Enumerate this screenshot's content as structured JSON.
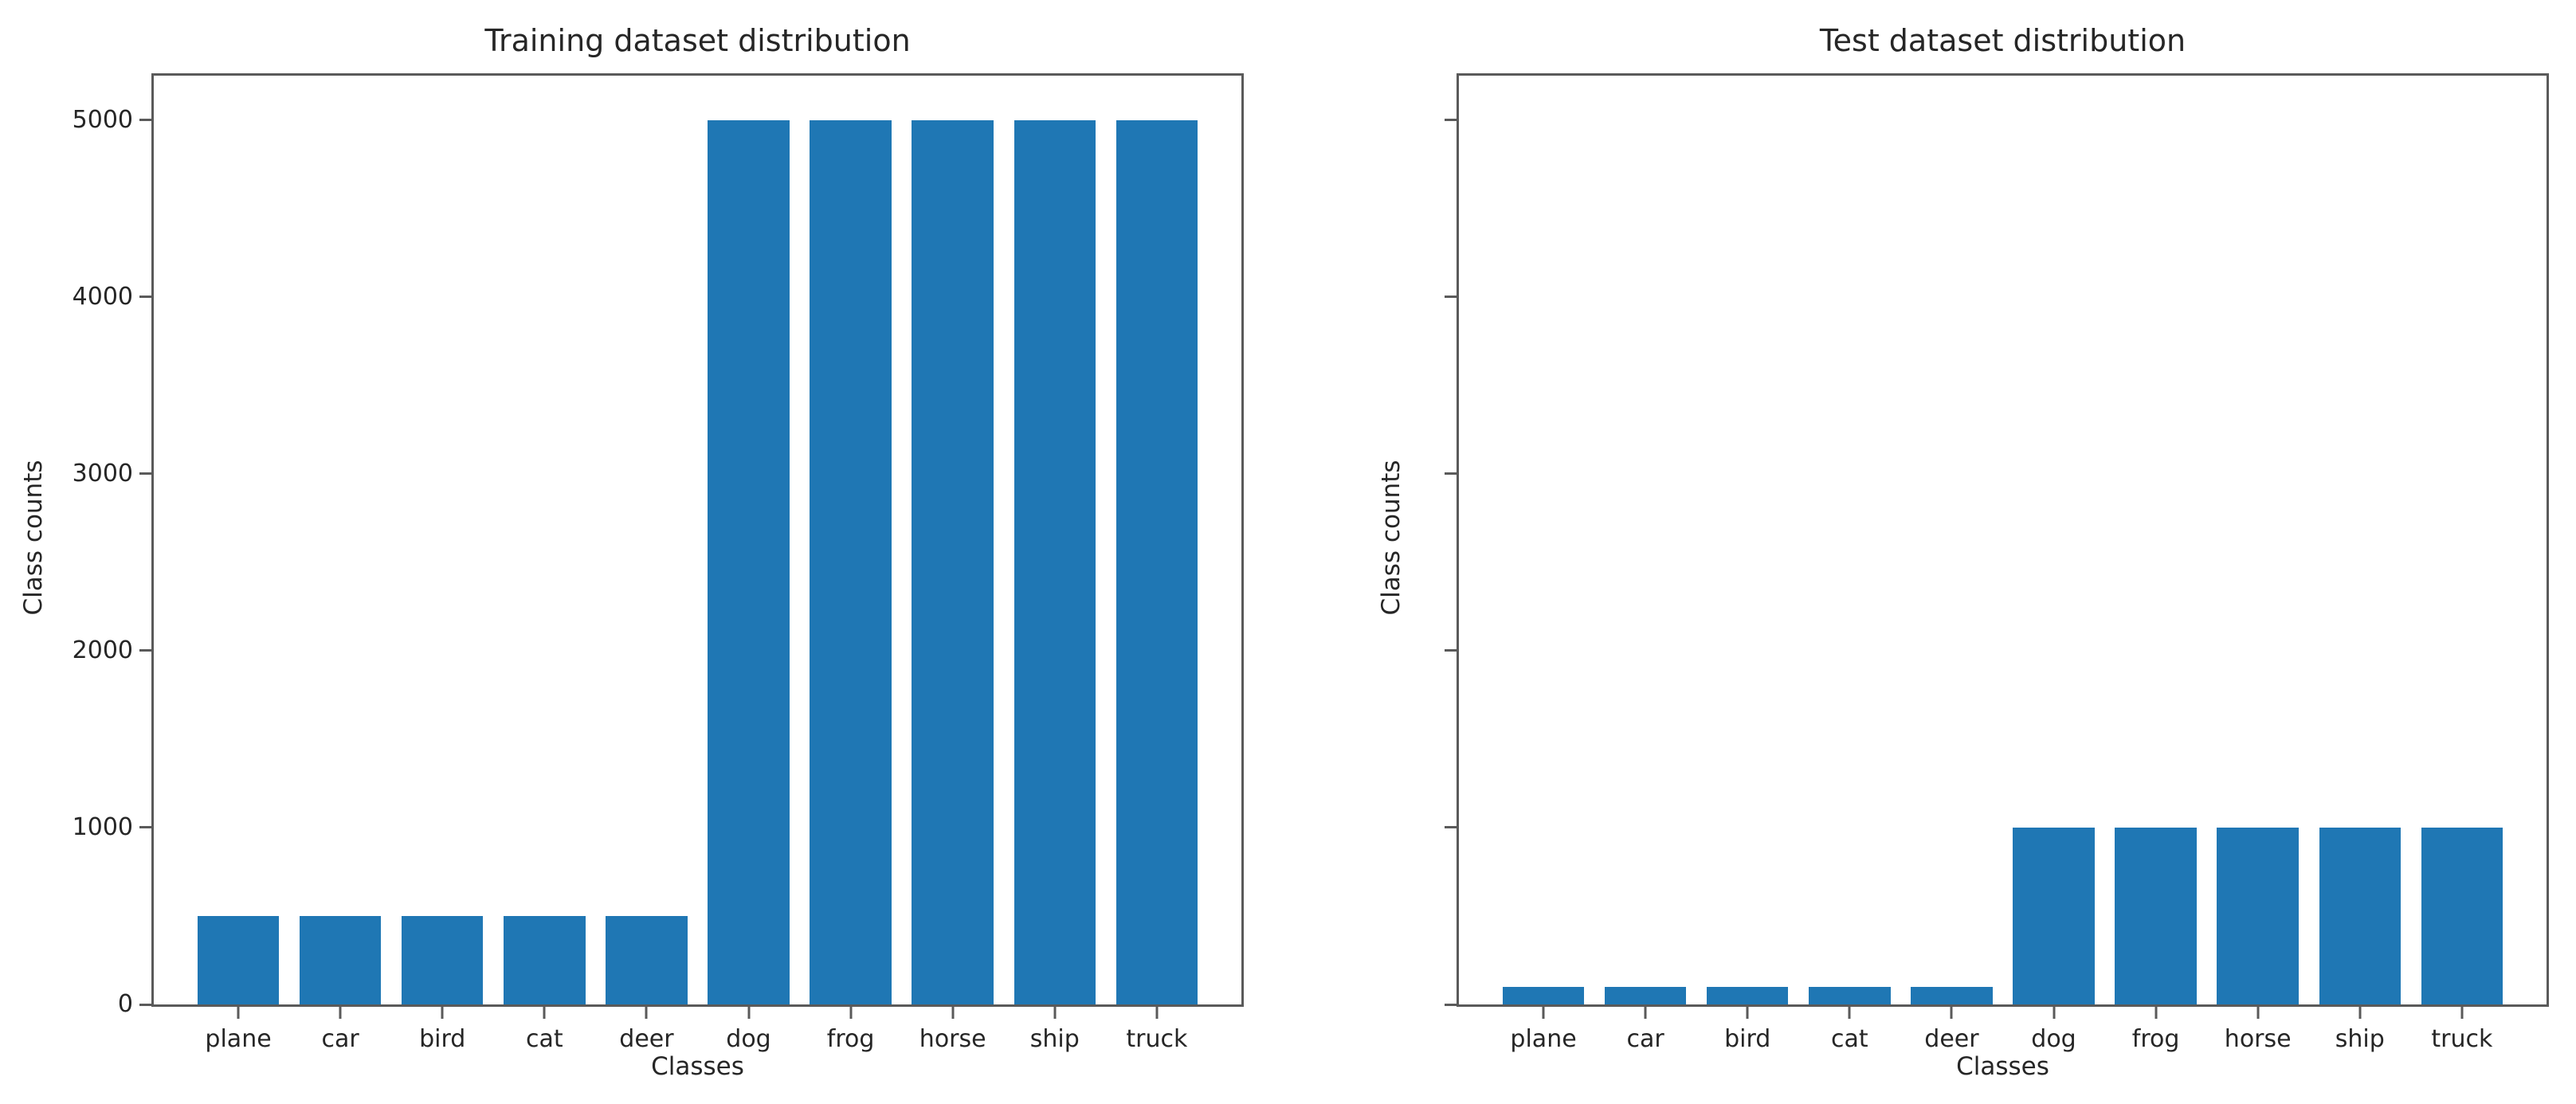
{
  "figure": {
    "background_color": "#ffffff",
    "bar_color": "#1f77b4",
    "axis_color": "#5a5a5a",
    "text_color": "#262626"
  },
  "chart_data": [
    {
      "type": "bar",
      "title": "Training dataset distribution",
      "xlabel": "Classes",
      "ylabel": "Class counts",
      "categories": [
        "plane",
        "car",
        "bird",
        "cat",
        "deer",
        "dog",
        "frog",
        "horse",
        "ship",
        "truck"
      ],
      "values": [
        500,
        500,
        500,
        500,
        500,
        5000,
        5000,
        5000,
        5000,
        5000
      ],
      "yticks": [
        0,
        1000,
        2000,
        3000,
        4000,
        5000
      ],
      "show_ytick_labels": true,
      "ylim": [
        0,
        5250
      ],
      "grid": false,
      "legend": "none",
      "bar_color": "#1f77b4"
    },
    {
      "type": "bar",
      "title": "Test dataset distribution",
      "xlabel": "Classes",
      "ylabel": "Class counts",
      "categories": [
        "plane",
        "car",
        "bird",
        "cat",
        "deer",
        "dog",
        "frog",
        "horse",
        "ship",
        "truck"
      ],
      "values": [
        100,
        100,
        100,
        100,
        100,
        1000,
        1000,
        1000,
        1000,
        1000
      ],
      "yticks": [
        0,
        1000,
        2000,
        3000,
        4000,
        5000
      ],
      "show_ytick_labels": false,
      "ylim": [
        0,
        5250
      ],
      "grid": false,
      "legend": "none",
      "bar_color": "#1f77b4"
    }
  ]
}
